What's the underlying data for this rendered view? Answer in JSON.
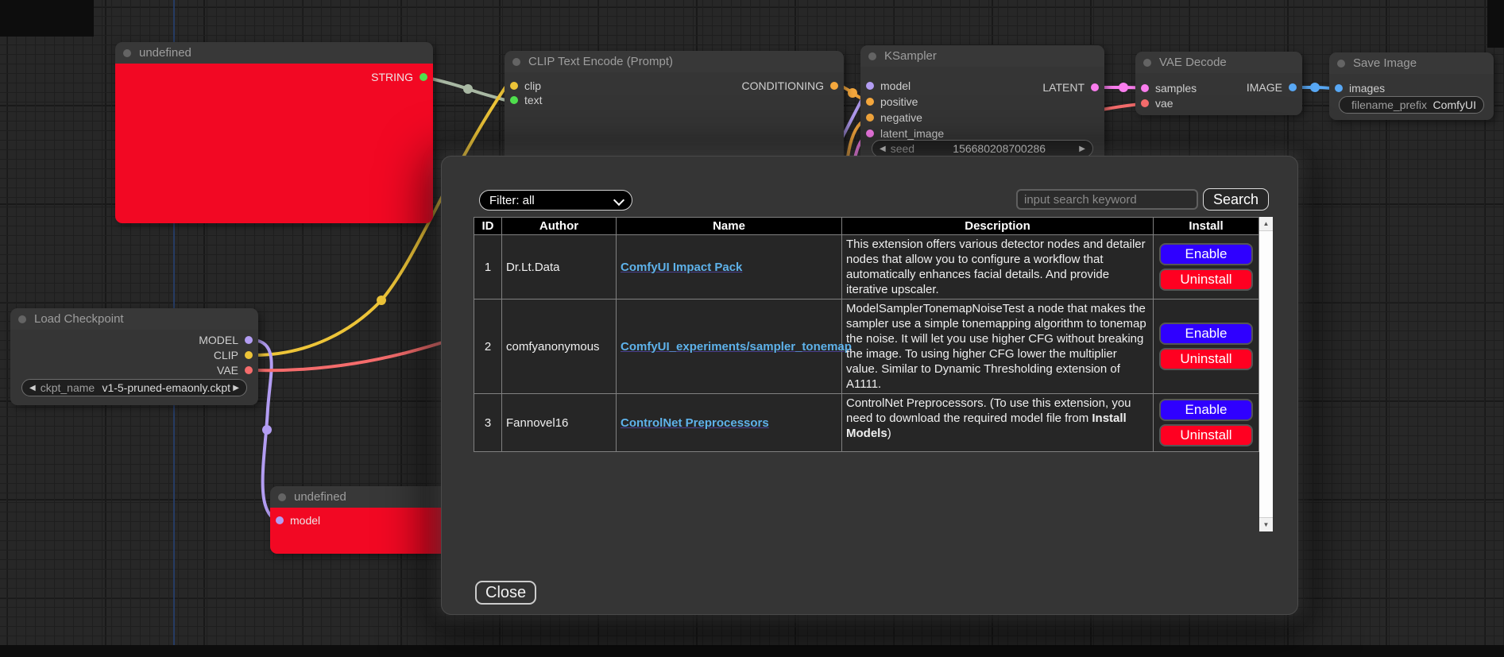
{
  "canvas": {
    "nodes": {
      "top_undefined": {
        "title": "undefined",
        "outputs": [
          "STRING"
        ]
      },
      "clip_encode": {
        "title": "CLIP Text Encode (Prompt)",
        "inputs": [
          "clip",
          "text"
        ],
        "outputs": [
          "CONDITIONING"
        ]
      },
      "ksampler": {
        "title": "KSampler",
        "inputs": [
          "model",
          "positive",
          "negative",
          "latent_image"
        ],
        "outputs": [
          "LATENT"
        ],
        "widget": {
          "label": "seed",
          "value": "156680208700286"
        }
      },
      "vae_decode": {
        "title": "VAE Decode",
        "inputs": [
          "samples",
          "vae"
        ],
        "outputs": [
          "IMAGE"
        ]
      },
      "save_image": {
        "title": "Save Image",
        "inputs": [
          "images"
        ],
        "widget": {
          "label": "filename_prefix",
          "value": "ComfyUI"
        }
      },
      "load_checkpoint": {
        "title": "Load Checkpoint",
        "outputs": [
          "MODEL",
          "CLIP",
          "VAE"
        ],
        "widget": {
          "label": "ckpt_name",
          "value": "v1-5-pruned-emaonly.ckpt"
        }
      },
      "bottom_undefined": {
        "title": "undefined",
        "inputs": [
          "model"
        ]
      }
    },
    "widget_arrows": {
      "left": "◀",
      "right": "▶"
    },
    "slot_colors": {
      "string": "#50e04e",
      "clip": "#edc438",
      "text": "#50e04e",
      "model": "#b39df3",
      "conditioning": "#f5a83d",
      "latent": "#fa7dee",
      "vae": "#f56c6c",
      "image": "#58a8f5",
      "string_wire": "#a8b8a3",
      "error_node_body": "#f20823"
    }
  },
  "modal": {
    "filter_label": "Filter: all",
    "search_placeholder": "input search keyword",
    "search_label": "Search",
    "close_label": "Close",
    "scroll_up_glyph": "▲",
    "scroll_down_glyph": "▼",
    "colors": {
      "enable_bg": "#2f00ff",
      "uninstall_bg": "#ff0021",
      "link": "#5eb2ea"
    },
    "table": {
      "headers": [
        "ID",
        "Author",
        "Name",
        "Description",
        "Install"
      ],
      "enable_label": "Enable",
      "uninstall_label": "Uninstall",
      "rows": [
        {
          "id": "1",
          "author": "Dr.Lt.Data",
          "name": "ComfyUI Impact Pack",
          "desc_pre": "This extension offers various detector nodes and detailer nodes that allow you to configure a workflow that automatically enhances facial details. And provide iterative upscaler.",
          "desc_bold": "",
          "desc_post": ""
        },
        {
          "id": "2",
          "author": "comfyanonymous",
          "name": "ComfyUI_experiments/sampler_tonemap",
          "desc_pre": "ModelSamplerTonemapNoiseTest a node that makes the sampler use a simple tonemapping algorithm to tonemap the noise. It will let you use higher CFG without breaking the image. To using higher CFG lower the multiplier value. Similar to Dynamic Thresholding extension of A1111.",
          "desc_bold": "",
          "desc_post": ""
        },
        {
          "id": "3",
          "author": "Fannovel16",
          "name": "ControlNet Preprocessors",
          "desc_pre": "ControlNet Preprocessors. (To use this extension, you need to download the required model file from ",
          "desc_bold": "Install Models",
          "desc_post": ")"
        }
      ]
    }
  }
}
